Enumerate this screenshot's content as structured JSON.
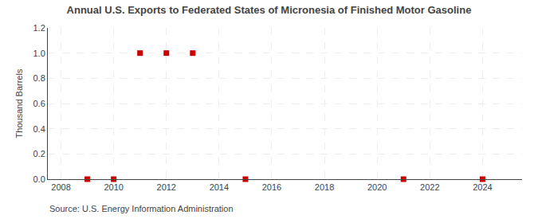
{
  "chart_data": {
    "type": "scatter",
    "title": "Annual U.S. Exports to Federated States of Micronesia of Finished Motor Gasoline",
    "ylabel": "Thousand Barrels",
    "annotations": [
      "Source: U.S. Energy Information Administration"
    ],
    "x": [
      2009,
      2010,
      2011,
      2012,
      2013,
      2015,
      2021,
      2024
    ],
    "values": [
      0.0,
      0.0,
      1.0,
      1.0,
      1.0,
      0.0,
      0.0,
      0.0
    ],
    "color": "#cc0000",
    "marker": "square",
    "xlim": [
      2007.5,
      2025.5
    ],
    "ylim": [
      0.0,
      1.2
    ],
    "xticks": [
      2008,
      2010,
      2012,
      2014,
      2016,
      2018,
      2020,
      2022,
      2024
    ],
    "yticks": [
      {
        "value": 0,
        "label": "0.0"
      },
      0.2,
      0.4,
      0.6,
      0.8,
      {
        "value": 1,
        "label": "1.0"
      },
      1.2
    ],
    "grid": true
  }
}
